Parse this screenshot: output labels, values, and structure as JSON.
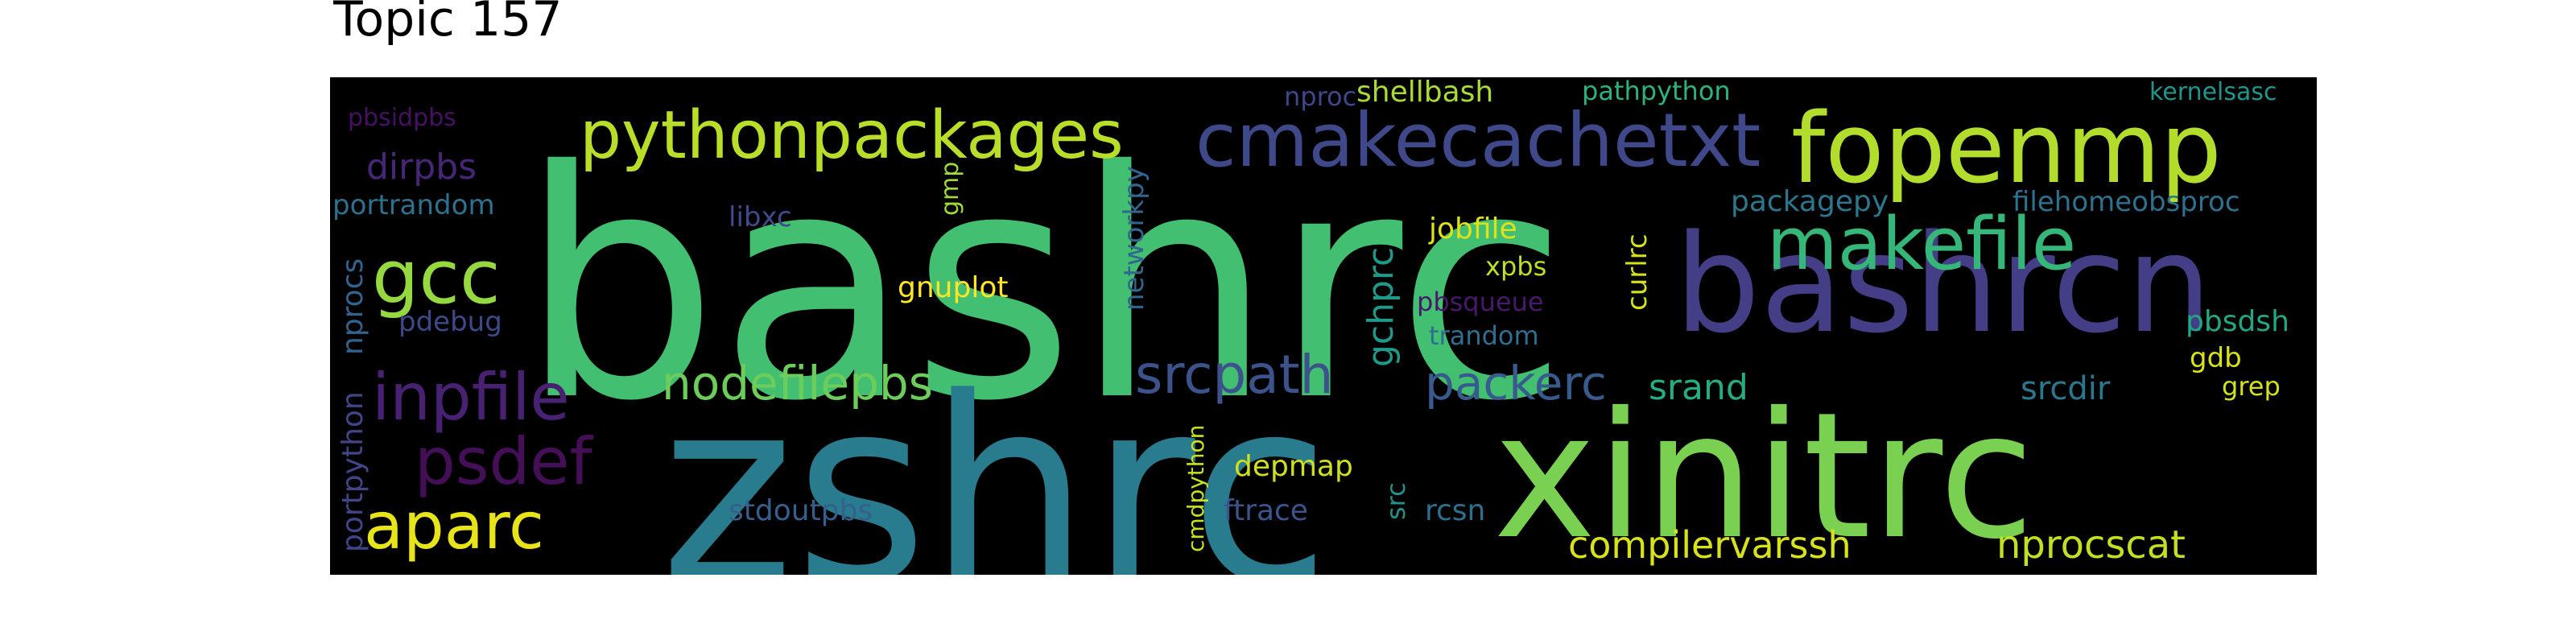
{
  "title": "Topic 157",
  "words": [
    {
      "text": "bashrc",
      "color": "#43bf71"
    },
    {
      "text": "zshrc",
      "color": "#297b8e"
    },
    {
      "text": "xinitrc",
      "color": "#7ad151"
    },
    {
      "text": "bashrcn",
      "color": "#433e85"
    },
    {
      "text": "fopenmp",
      "color": "#b2dd2d"
    },
    {
      "text": "pythonpackages",
      "color": "#b8de29"
    },
    {
      "text": "cmakecachetxt",
      "color": "#3f4889"
    },
    {
      "text": "makefile",
      "color": "#35b779"
    },
    {
      "text": "gcc",
      "color": "#95d840"
    },
    {
      "text": "inpfile",
      "color": "#482173"
    },
    {
      "text": "psdef",
      "color": "#440f56"
    },
    {
      "text": "aparc",
      "color": "#e7e419"
    },
    {
      "text": "nodefilepbs",
      "color": "#6ccd5a"
    },
    {
      "text": "srcpath",
      "color": "#3b528b"
    },
    {
      "text": "packerc",
      "color": "#375b8d"
    },
    {
      "text": "compilervarssh",
      "color": "#d8e219"
    },
    {
      "text": "nprocscat",
      "color": "#c2df23"
    },
    {
      "text": "dirpbs",
      "color": "#482677"
    },
    {
      "text": "gchprc",
      "color": "#1f9a8a"
    },
    {
      "text": "srand",
      "color": "#25ac82"
    },
    {
      "text": "srcdir",
      "color": "#2a788e"
    },
    {
      "text": "stdoutpbs",
      "color": "#355f8d"
    },
    {
      "text": "packagepy",
      "color": "#2a778e"
    },
    {
      "text": "filehomeobsproc",
      "color": "#2c718e"
    },
    {
      "text": "portrandom",
      "color": "#2c728e"
    },
    {
      "text": "libxc",
      "color": "#3e4a89"
    },
    {
      "text": "pdebug",
      "color": "#3e4989"
    },
    {
      "text": "nprocs",
      "color": "#33638d"
    },
    {
      "text": "portpython",
      "color": "#414487"
    },
    {
      "text": "pbsidpbs",
      "color": "#471063"
    },
    {
      "text": "gnuplot",
      "color": "#fde725"
    },
    {
      "text": "gmp",
      "color": "#a0da39"
    },
    {
      "text": "networkpy",
      "color": "#31668e"
    },
    {
      "text": "nproc",
      "color": "#3f4788"
    },
    {
      "text": "shellbash",
      "color": "#a8db34"
    },
    {
      "text": "pathpython",
      "color": "#2db27d"
    },
    {
      "text": "kernelsasc",
      "color": "#1f968b"
    },
    {
      "text": "jobfile",
      "color": "#dde318"
    },
    {
      "text": "xpbs",
      "color": "#bddf26"
    },
    {
      "text": "pbsqueue",
      "color": "#48186a"
    },
    {
      "text": "trandom",
      "color": "#2e6e8e"
    },
    {
      "text": "curlrc",
      "color": "#d5e21a"
    },
    {
      "text": "depmap",
      "color": "#d0e11c"
    },
    {
      "text": "ftrace",
      "color": "#3a548c"
    },
    {
      "text": "cmdpython",
      "color": "#c8e020"
    },
    {
      "text": "src",
      "color": "#21918c"
    },
    {
      "text": "rcsn",
      "color": "#2d708e"
    },
    {
      "text": "pbsdsh",
      "color": "#22a785"
    },
    {
      "text": "gdb",
      "color": "#dae319"
    },
    {
      "text": "grep",
      "color": "#d2e21b"
    }
  ]
}
